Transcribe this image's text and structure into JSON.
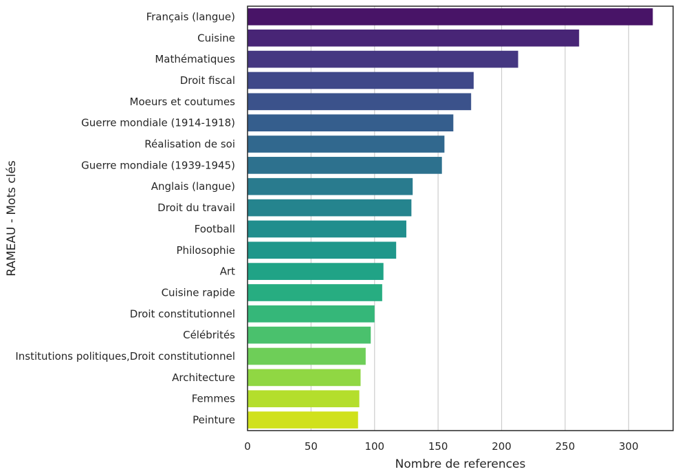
{
  "chart_data": {
    "type": "bar",
    "orientation": "horizontal",
    "title": "",
    "xlabel": "Nombre de references",
    "ylabel": "RAMEAU - Mots clés",
    "xlim": [
      0,
      335
    ],
    "xticks": [
      0,
      50,
      100,
      150,
      200,
      250,
      300
    ],
    "grid": "vertical",
    "legend": "none",
    "categories": [
      "Français (langue)",
      "Cuisine",
      "Mathématiques",
      "Droit fiscal",
      "Moeurs et coutumes",
      "Guerre mondiale (1914-1918)",
      "Réalisation de soi",
      "Guerre mondiale (1939-1945)",
      "Anglais (langue)",
      "Droit du travail",
      "Football",
      "Philosophie",
      "Art",
      "Cuisine rapide",
      "Droit constitutionnel",
      "Célébrités",
      "Institutions politiques,Droit constitutionnel",
      "Architecture",
      "Femmes",
      "Peinture"
    ],
    "values": [
      319,
      261,
      213,
      178,
      176,
      162,
      155,
      153,
      130,
      129,
      125,
      117,
      107,
      106,
      100,
      97,
      93,
      89,
      88,
      87
    ],
    "colors": [
      "#481467",
      "#482576",
      "#453781",
      "#3f4889",
      "#3b528b",
      "#355e8d",
      "#31688e",
      "#2d718e",
      "#297b8e",
      "#25848e",
      "#218e8d",
      "#1f978b",
      "#20a386",
      "#27ad81",
      "#35b779",
      "#4ac16d",
      "#6ece58",
      "#90d743",
      "#b4de2c",
      "#d0e11c"
    ]
  }
}
